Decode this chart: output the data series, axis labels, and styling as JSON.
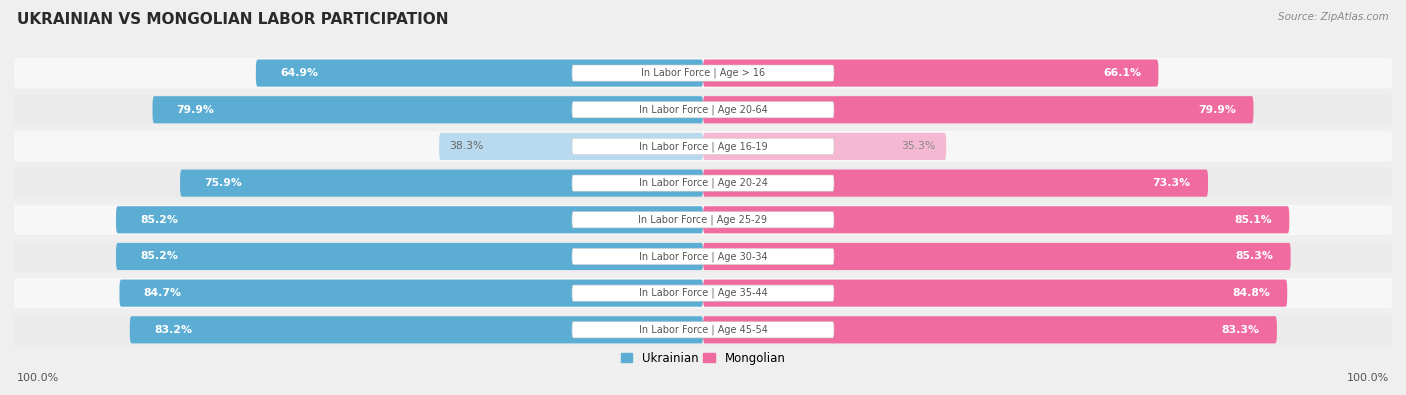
{
  "title": "UKRAINIAN VS MONGOLIAN LABOR PARTICIPATION",
  "source": "Source: ZipAtlas.com",
  "categories": [
    "In Labor Force | Age > 16",
    "In Labor Force | Age 20-64",
    "In Labor Force | Age 16-19",
    "In Labor Force | Age 20-24",
    "In Labor Force | Age 25-29",
    "In Labor Force | Age 30-34",
    "In Labor Force | Age 35-44",
    "In Labor Force | Age 45-54"
  ],
  "ukrainian_values": [
    64.9,
    79.9,
    38.3,
    75.9,
    85.2,
    85.2,
    84.7,
    83.2
  ],
  "mongolian_values": [
    66.1,
    79.9,
    35.3,
    73.3,
    85.1,
    85.3,
    84.8,
    83.3
  ],
  "ukrainian_color": "#5BADD4",
  "ukrainian_light_color": "#B8D9EE",
  "mongolian_color": "#F06BA0",
  "mongolian_light_color": "#F5B8D2",
  "bg_color": "#EFEFEF",
  "row_bg_odd": "#F7F7F7",
  "row_bg_even": "#EBEBEB",
  "center_label_color": "#555555",
  "title_color": "#2a2a2a",
  "source_color": "#888888",
  "legend_label_ukrainian": "Ukrainian",
  "legend_label_mongolian": "Mongolian",
  "footer_label": "100.0%",
  "light_threshold": 50,
  "max_val": 100
}
